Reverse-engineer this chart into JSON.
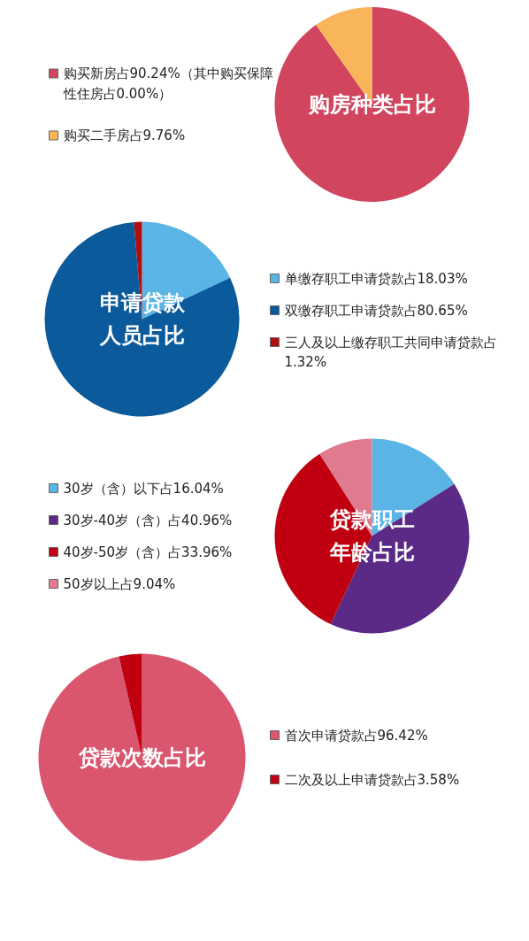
{
  "chart_data": [
    {
      "type": "pie",
      "title": "购房种类占比",
      "legend": "left",
      "categories": [
        "购买新房占90.24%（其中购买保障性住房占0.00%）",
        "购买二手房占9.76%"
      ],
      "values": [
        90.24,
        9.76
      ],
      "colors": [
        "#d2455f",
        "#f9b55a"
      ]
    },
    {
      "type": "pie",
      "title": "申请贷款人员占比",
      "legend": "right",
      "categories": [
        "单缴存职工申请贷款占18.03%",
        "双缴存职工申请贷款占80.65%",
        "三人及以上缴存职工共同申请贷款占1.32%"
      ],
      "values": [
        18.03,
        80.65,
        1.32
      ],
      "colors": [
        "#5ab4e5",
        "#0a5a9c",
        "#b00e0e"
      ]
    },
    {
      "type": "pie",
      "title": "贷款职工年龄占比",
      "legend": "left",
      "categories": [
        "30岁（含）以下占16.04%",
        "30岁-40岁（含）占40.96%",
        "40岁-50岁（含）占33.96%",
        "50岁以上占9.04%"
      ],
      "values": [
        16.04,
        40.96,
        33.96,
        9.04
      ],
      "colors": [
        "#5ab4e5",
        "#5b2a86",
        "#c00010",
        "#e07a8e"
      ]
    },
    {
      "type": "pie",
      "title": "贷款次数占比",
      "legend": "right",
      "categories": [
        "首次申请贷款占96.42%",
        "二次及以上申请贷款占3.58%"
      ],
      "values": [
        96.42,
        3.58
      ],
      "colors": [
        "#d9566e",
        "#c00010"
      ]
    }
  ]
}
